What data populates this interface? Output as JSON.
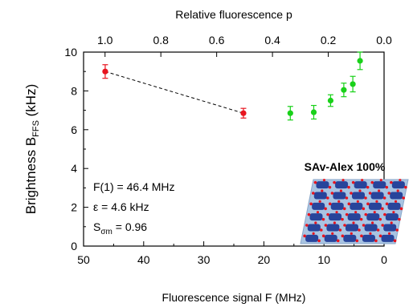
{
  "chart_data": {
    "type": "scatter",
    "x_axis": {
      "label": "Fluorescence signal F (MHz)",
      "range": [
        50,
        0
      ],
      "ticks": [
        50,
        40,
        30,
        20,
        10,
        0
      ],
      "tick_labels": [
        "50",
        "40",
        "30",
        "20",
        "10",
        "0"
      ]
    },
    "top_axis": {
      "label": "Relative fluorescence p",
      "range": [
        1.077,
        0.0
      ],
      "ticks": [
        1.0,
        0.8,
        0.6,
        0.4,
        0.2,
        0.0
      ],
      "tick_labels": [
        "1.0",
        "0.8",
        "0.6",
        "0.4",
        "0.2",
        "0.0"
      ]
    },
    "y_axis": {
      "label_main": "Brightness B",
      "label_sub": "FFS",
      "label_unit": " (kHz)",
      "range": [
        0,
        10
      ],
      "ticks": [
        0,
        2,
        4,
        6,
        8,
        10
      ],
      "tick_labels": [
        "0",
        "2",
        "4",
        "6",
        "8",
        "10"
      ]
    },
    "series": [
      {
        "color": "#e8141e",
        "points": [
          {
            "x": 46.4,
            "y": 9.0,
            "err": 0.35
          },
          {
            "x": 23.4,
            "y": 6.85,
            "err": 0.25
          }
        ],
        "connector": "dashed"
      },
      {
        "color": "#19d119",
        "points": [
          {
            "x": 15.6,
            "y": 6.85,
            "err": 0.35
          },
          {
            "x": 11.7,
            "y": 6.9,
            "err": 0.35
          },
          {
            "x": 8.9,
            "y": 7.5,
            "err": 0.3
          },
          {
            "x": 6.7,
            "y": 8.05,
            "err": 0.35
          },
          {
            "x": 5.2,
            "y": 8.35,
            "err": 0.4
          },
          {
            "x": 4.0,
            "y": 9.55,
            "err": 0.45
          }
        ]
      }
    ],
    "annotations": {
      "line1": "F(1) = 46.4 MHz",
      "line2": "ε = 4.6 kHz",
      "line3_main": "S",
      "line3_sub": "σm",
      "line3_rest": " = 0.96"
    },
    "inset": {
      "title": "SAv-Alex 100%",
      "colors": {
        "base": "#a9c4e2",
        "block": "#27449b",
        "dot": "#e8141e"
      }
    },
    "grid": false,
    "legend": "none"
  }
}
